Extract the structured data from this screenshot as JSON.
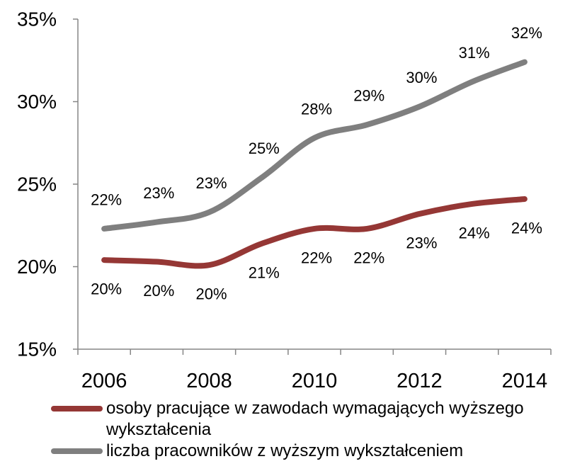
{
  "chart_data": {
    "type": "line",
    "smooth": true,
    "x": [
      2006,
      2007,
      2008,
      2009,
      2010,
      2011,
      2012,
      2013,
      2014
    ],
    "xticks": [
      "2006",
      "2008",
      "2010",
      "2012",
      "2014"
    ],
    "ylim": [
      15,
      35
    ],
    "ytick_values": [
      15,
      20,
      25,
      30,
      35
    ],
    "yticks": [
      "15%",
      "20%",
      "25%",
      "30%",
      "35%"
    ],
    "grid": false,
    "legend_position": "bottom",
    "axis_color": "#868686",
    "series": [
      {
        "name": "osoby pracujące w zawodach wymagających wyższego wykształcenia",
        "color": "#953735",
        "values": [
          20.4,
          20.3,
          20.1,
          21.4,
          22.3,
          22.3,
          23.2,
          23.8,
          24.1
        ],
        "labels": [
          "20%",
          "20%",
          "20%",
          "21%",
          "22%",
          "22%",
          "23%",
          "24%",
          "24%"
        ]
      },
      {
        "name": "liczba pracowników z wyższym wykształceniem",
        "color": "#7f7f7f",
        "values": [
          22.3,
          22.7,
          23.3,
          25.4,
          27.8,
          28.6,
          29.7,
          31.2,
          32.4
        ],
        "labels": [
          "22%",
          "23%",
          "23%",
          "25%",
          "28%",
          "29%",
          "30%",
          "31%",
          "32%"
        ]
      }
    ]
  }
}
